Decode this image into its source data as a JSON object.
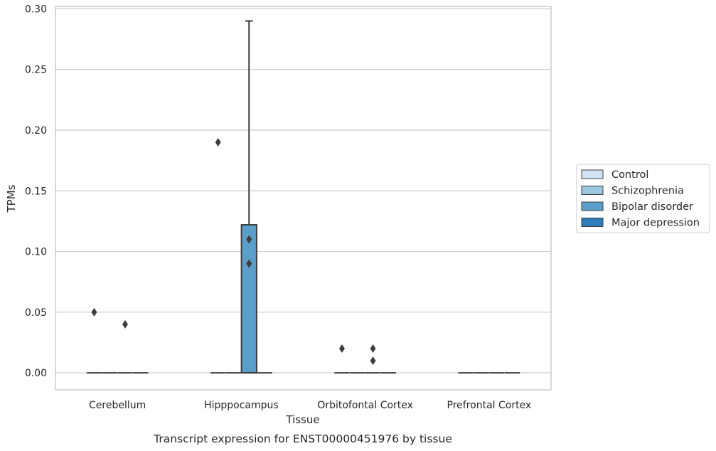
{
  "chart_data": {
    "type": "box",
    "title": "",
    "caption": "Transcript expression for ENST00000451976 by tissue",
    "xlabel": "Tissue",
    "ylabel": "TPMs",
    "ylim": [
      -0.014,
      0.302
    ],
    "yticks": [
      "0.00",
      "0.05",
      "0.10",
      "0.15",
      "0.20",
      "0.25",
      "0.30"
    ],
    "ytick_values": [
      0.0,
      0.05,
      0.1,
      0.15,
      0.2,
      0.25,
      0.3
    ],
    "categories": [
      "Cerebellum",
      "Hipppocampus",
      "Orbitofontal Cortex",
      "Prefrontal Cortex"
    ],
    "grid": true,
    "legend_position": "right",
    "series": [
      {
        "name": "Control",
        "color": "#d1e2f2",
        "boxes": [
          {
            "q1": 0.0,
            "median": 0.0,
            "q3": 0.0,
            "whisker_low": 0.0,
            "whisker_high": 0.0,
            "outliers": [
              0.05
            ]
          },
          {
            "q1": 0.0,
            "median": 0.0,
            "q3": 0.0,
            "whisker_low": 0.0,
            "whisker_high": 0.0,
            "outliers": [
              0.19
            ]
          },
          {
            "q1": 0.0,
            "median": 0.0,
            "q3": 0.0,
            "whisker_low": 0.0,
            "whisker_high": 0.0,
            "outliers": [
              0.02
            ]
          },
          {
            "q1": 0.0,
            "median": 0.0,
            "q3": 0.0,
            "whisker_low": 0.0,
            "whisker_high": 0.0,
            "outliers": []
          }
        ]
      },
      {
        "name": "Schizophrenia",
        "color": "#9ac7e0",
        "boxes": [
          {
            "q1": 0.0,
            "median": 0.0,
            "q3": 0.0,
            "whisker_low": 0.0,
            "whisker_high": 0.0,
            "outliers": []
          },
          {
            "q1": 0.0,
            "median": 0.0,
            "q3": 0.0,
            "whisker_low": 0.0,
            "whisker_high": 0.0,
            "outliers": []
          },
          {
            "q1": 0.0,
            "median": 0.0,
            "q3": 0.0,
            "whisker_low": 0.0,
            "whisker_high": 0.0,
            "outliers": []
          },
          {
            "q1": 0.0,
            "median": 0.0,
            "q3": 0.0,
            "whisker_low": 0.0,
            "whisker_high": 0.0,
            "outliers": []
          }
        ]
      },
      {
        "name": "Bipolar disorder",
        "color": "#5b9ec9",
        "boxes": [
          {
            "q1": 0.0,
            "median": 0.0,
            "q3": 0.0,
            "whisker_low": 0.0,
            "whisker_high": 0.0,
            "outliers": [
              0.04
            ]
          },
          {
            "q1": 0.0,
            "median": 0.0,
            "q3": 0.122,
            "whisker_low": 0.0,
            "whisker_high": 0.29,
            "outliers": [
              0.11,
              0.09
            ]
          },
          {
            "q1": 0.0,
            "median": 0.0,
            "q3": 0.0,
            "whisker_low": 0.0,
            "whisker_high": 0.0,
            "outliers": [
              0.02,
              0.01
            ]
          },
          {
            "q1": 0.0,
            "median": 0.0,
            "q3": 0.0,
            "whisker_low": 0.0,
            "whisker_high": 0.0,
            "outliers": []
          }
        ]
      },
      {
        "name": "Major depression",
        "color": "#2d7dbb",
        "boxes": [
          {
            "q1": 0.0,
            "median": 0.0,
            "q3": 0.0,
            "whisker_low": 0.0,
            "whisker_high": 0.0,
            "outliers": []
          },
          {
            "q1": 0.0,
            "median": 0.0,
            "q3": 0.0,
            "whisker_low": 0.0,
            "whisker_high": 0.0,
            "outliers": []
          },
          {
            "q1": 0.0,
            "median": 0.0,
            "q3": 0.0,
            "whisker_low": 0.0,
            "whisker_high": 0.0,
            "outliers": []
          },
          {
            "q1": 0.0,
            "median": 0.0,
            "q3": 0.0,
            "whisker_low": 0.0,
            "whisker_high": 0.0,
            "outliers": []
          }
        ]
      }
    ]
  }
}
